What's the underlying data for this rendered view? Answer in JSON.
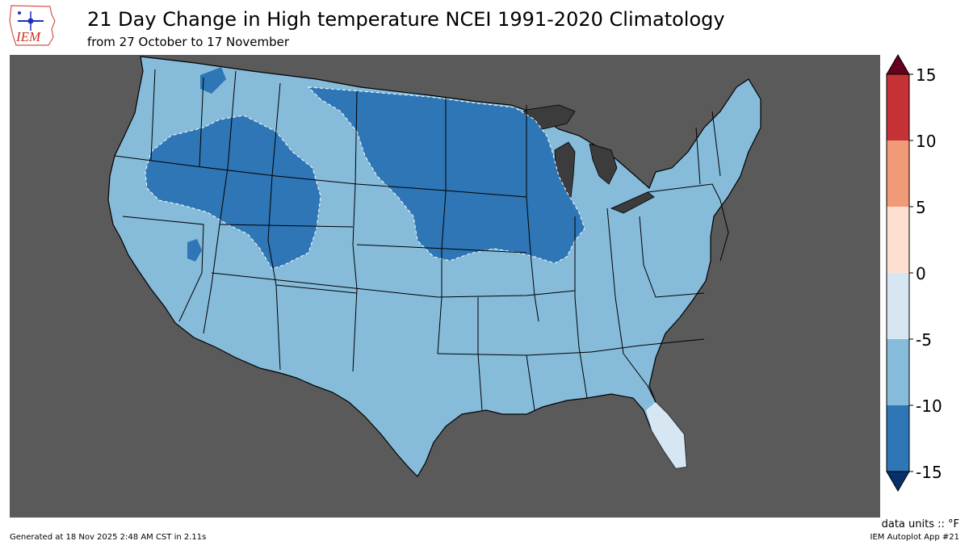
{
  "header": {
    "logo_text": "IEM",
    "title": "21 Day Change in High temperature NCEI 1991-2020 Climatology",
    "subtitle": "from 27 October to 17 November"
  },
  "colors": {
    "ocean_land_outside": "#5a5a5a",
    "lake": "#3c3c3c",
    "bin_neg15_neg10": "#2e76b5",
    "bin_neg10_neg5": "#86bbda",
    "bin_neg5_0": "#d6e6f2",
    "bin_0_5": "#fde0d0",
    "bin_5_10": "#f19a78",
    "bin_10_15": "#c53235",
    "over": "#67001f",
    "under": "#08306b"
  },
  "colorbar": {
    "ticks": [
      "15",
      "10",
      "5",
      "0",
      "-5",
      "-10",
      "-15"
    ],
    "units_label": "data units :: °F"
  },
  "footer": {
    "generated": "Generated at 18 Nov 2025 2:48 AM CST in 2.11s",
    "app": "IEM Autoplot App #21"
  }
}
